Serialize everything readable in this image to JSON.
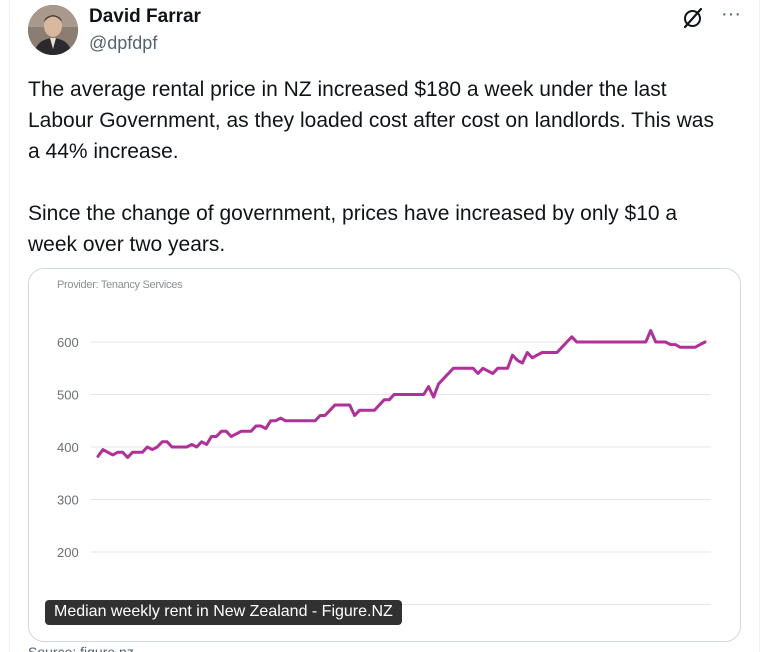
{
  "author": {
    "name": "David Farrar",
    "handle": "@dpfdpf"
  },
  "icons": {
    "grok": "grok-icon",
    "more": "more-icon",
    "more_glyph": "···"
  },
  "tweet": {
    "paragraphs": [
      "The average rental price in NZ increased $180 a week under the last Labour Government, as they loaded cost after cost on landlords. This was a 44% increase.",
      "Since the change of government, prices have increased by only $10 a week over two years."
    ]
  },
  "media": {
    "provider": "Provider: Tenancy Services",
    "caption": "Median weekly rent in New Zealand - Figure.NZ"
  },
  "colors": {
    "line": "#b22f9a",
    "grid": "#e6e6e6",
    "text": "#0f1419",
    "muted": "#536471"
  },
  "chart_data": {
    "type": "line",
    "title": "",
    "xlabel": "",
    "ylabel": "",
    "ylim": [
      100,
      650
    ],
    "yticks": [
      200,
      300,
      400,
      500,
      600
    ],
    "grid": true,
    "series": [
      {
        "values": [
          382,
          395,
          390,
          385,
          390,
          390,
          380,
          390,
          390,
          390,
          400,
          395,
          400,
          410,
          410,
          400,
          400,
          400,
          400,
          405,
          400,
          410,
          405,
          420,
          420,
          430,
          430,
          420,
          425,
          430,
          430,
          430,
          440,
          440,
          435,
          450,
          450,
          455,
          450,
          450,
          450,
          450,
          450,
          450,
          450,
          460,
          460,
          470,
          480,
          480,
          480,
          480,
          460,
          470,
          470,
          470,
          470,
          480,
          490,
          490,
          500,
          500,
          500,
          500,
          500,
          500,
          500,
          515,
          495,
          520,
          530,
          540,
          550,
          550,
          550,
          550,
          550,
          540,
          550,
          545,
          540,
          550,
          550,
          550,
          575,
          565,
          560,
          580,
          570,
          575,
          580,
          580,
          580,
          580,
          590,
          600,
          610,
          600,
          600,
          600,
          600,
          600,
          600,
          600,
          600,
          600,
          600,
          600,
          600,
          600,
          600,
          600,
          622,
          600,
          600,
          600,
          595,
          595,
          590,
          590,
          590,
          590,
          595,
          600
        ]
      }
    ]
  }
}
